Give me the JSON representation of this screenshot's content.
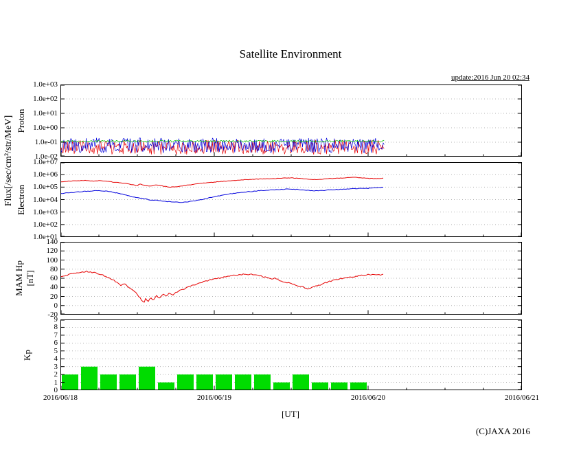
{
  "title": "Satellite Environment",
  "update_text": "update:2016 Jun 20 02:34",
  "shared_ylabel": "Flux[/sec/cm²/str/MeV]",
  "footer": {
    "xlabel": "[UT]",
    "copyright": "(C)JAXA 2016"
  },
  "x_axis": {
    "range_hours": [
      0,
      72
    ],
    "data_end_hour": 50.57,
    "ticks": [
      {
        "label": "2016/06/18",
        "hour": 0
      },
      {
        "label": "2016/06/19",
        "hour": 24
      },
      {
        "label": "2016/06/20",
        "hour": 48
      },
      {
        "label": "2016/06/21",
        "hour": 72
      }
    ]
  },
  "chart_data": [
    {
      "type": "line",
      "name": "proton-flux",
      "ylabel": "Proton",
      "yscale": "log",
      "ylim": [
        0.01,
        1000
      ],
      "grid": true,
      "yticks": [
        {
          "label": "1.0e+03",
          "value": 1000
        },
        {
          "label": "1.0e+02",
          "value": 100
        },
        {
          "label": "1.0e+01",
          "value": 10
        },
        {
          "label": "1.0e+00",
          "value": 1
        },
        {
          "label": "1.0e-01",
          "value": 0.1
        },
        {
          "label": "1.0e-02",
          "value": 0.01
        }
      ],
      "series": [
        {
          "name": "proton-red",
          "color": "#e60000",
          "style": "noise",
          "log_center": -1.35,
          "log_jitter": 0.5,
          "seed": 303
        },
        {
          "name": "proton-blue",
          "color": "#0000dd",
          "style": "noise",
          "log_center": -1.22,
          "log_jitter": 0.52,
          "seed": 202
        },
        {
          "name": "proton-green",
          "color": "#00c000",
          "style": "noise",
          "log_center": -0.93,
          "log_jitter": 0.07,
          "seed": 101
        }
      ]
    },
    {
      "type": "line",
      "name": "electron-flux",
      "ylabel": "Electron",
      "yscale": "log",
      "ylim": [
        10,
        10000000
      ],
      "grid": true,
      "yticks": [
        {
          "label": "1.0e+07",
          "value": 10000000
        },
        {
          "label": "1.0e+06",
          "value": 1000000
        },
        {
          "label": "1.0e+05",
          "value": 100000
        },
        {
          "label": "1.0e+04",
          "value": 10000
        },
        {
          "label": "1.0e+03",
          "value": 1000
        },
        {
          "label": "1.0e+02",
          "value": 100
        },
        {
          "label": "1.0e+01",
          "value": 10
        }
      ],
      "series": [
        {
          "name": "electron-blue",
          "color": "#0000dd",
          "style": "line",
          "log_jitter": 0.025,
          "seed": 8,
          "points": [
            [
              0,
              30000
            ],
            [
              2,
              38000
            ],
            [
              4,
              46000
            ],
            [
              6,
              52000
            ],
            [
              7,
              48000
            ],
            [
              8,
              40000
            ],
            [
              9,
              32000
            ],
            [
              10,
              24000
            ],
            [
              11,
              18000
            ],
            [
              12,
              14000
            ],
            [
              13,
              11500
            ],
            [
              14,
              9500
            ],
            [
              15,
              8500
            ],
            [
              16,
              7500
            ],
            [
              17,
              6800
            ],
            [
              18,
              6200
            ],
            [
              19,
              6000
            ],
            [
              20,
              6800
            ],
            [
              21,
              8000
            ],
            [
              22,
              10000
            ],
            [
              23,
              13000
            ],
            [
              24,
              17000
            ],
            [
              25,
              21000
            ],
            [
              26,
              26000
            ],
            [
              28,
              36000
            ],
            [
              30,
              46000
            ],
            [
              32,
              56000
            ],
            [
              34,
              64000
            ],
            [
              35,
              68000
            ],
            [
              36,
              70000
            ],
            [
              37,
              65000
            ],
            [
              38,
              58000
            ],
            [
              39,
              52000
            ],
            [
              40,
              50000
            ],
            [
              41,
              54000
            ],
            [
              42,
              60000
            ],
            [
              44,
              68000
            ],
            [
              46,
              75000
            ],
            [
              48,
              80000
            ],
            [
              49,
              86000
            ],
            [
              50,
              92000
            ],
            [
              50.6,
              100000
            ]
          ]
        },
        {
          "name": "electron-red",
          "color": "#e60000",
          "style": "line",
          "log_jitter": 0.02,
          "seed": 7,
          "points": [
            [
              0,
              260000
            ],
            [
              2,
              320000
            ],
            [
              4,
              340000
            ],
            [
              5,
              300000
            ],
            [
              6,
              330000
            ],
            [
              8,
              260000
            ],
            [
              10,
              200000
            ],
            [
              11,
              160000
            ],
            [
              12,
              130000
            ],
            [
              12.5,
              180000
            ],
            [
              13,
              140000
            ],
            [
              14,
              120000
            ],
            [
              15,
              150000
            ],
            [
              16,
              120000
            ],
            [
              17,
              100000
            ],
            [
              18,
              105000
            ],
            [
              19,
              125000
            ],
            [
              20,
              150000
            ],
            [
              21,
              170000
            ],
            [
              22,
              200000
            ],
            [
              24,
              250000
            ],
            [
              26,
              310000
            ],
            [
              28,
              370000
            ],
            [
              30,
              420000
            ],
            [
              32,
              460000
            ],
            [
              34,
              500000
            ],
            [
              35,
              530000
            ],
            [
              36,
              550000
            ],
            [
              37,
              510000
            ],
            [
              38,
              460000
            ],
            [
              39,
              410000
            ],
            [
              40,
              390000
            ],
            [
              41,
              430000
            ],
            [
              42,
              480000
            ],
            [
              44,
              540000
            ],
            [
              45,
              580000
            ],
            [
              46,
              600000
            ],
            [
              47,
              550000
            ],
            [
              48,
              500000
            ],
            [
              49,
              480000
            ],
            [
              50,
              500000
            ],
            [
              50.6,
              520000
            ]
          ]
        }
      ]
    },
    {
      "type": "line",
      "name": "mam-hp",
      "ylabel": "MAM Hp",
      "ylabel2": "[nT]",
      "yscale": "linear",
      "ylim": [
        -20,
        140
      ],
      "grid": true,
      "yticks": [
        {
          "label": "140",
          "value": 140
        },
        {
          "label": "120",
          "value": 120
        },
        {
          "label": "100",
          "value": 100
        },
        {
          "label": "80",
          "value": 80
        },
        {
          "label": "60",
          "value": 60
        },
        {
          "label": "40",
          "value": 40
        },
        {
          "label": "20",
          "value": 20
        },
        {
          "label": "0",
          "value": 0
        },
        {
          "label": "-20",
          "value": -20
        }
      ],
      "series": [
        {
          "name": "hp-red",
          "color": "#e60000",
          "style": "line",
          "jitter": 1.3,
          "seed": 9,
          "points": [
            [
              0,
              64
            ],
            [
              1,
              67
            ],
            [
              2,
              70
            ],
            [
              3,
              73
            ],
            [
              4,
              75
            ],
            [
              5,
              73
            ],
            [
              6,
              70
            ],
            [
              7,
              65
            ],
            [
              8,
              58
            ],
            [
              9,
              50
            ],
            [
              9.5,
              44
            ],
            [
              10,
              48
            ],
            [
              10.5,
              41
            ],
            [
              11,
              37
            ],
            [
              11.5,
              31
            ],
            [
              12,
              25
            ],
            [
              12.5,
              15
            ],
            [
              13,
              6
            ],
            [
              13.3,
              16
            ],
            [
              13.7,
              9
            ],
            [
              14,
              18
            ],
            [
              14.5,
              12
            ],
            [
              15,
              21
            ],
            [
              15.5,
              16
            ],
            [
              16,
              25
            ],
            [
              16.5,
              20
            ],
            [
              17,
              27
            ],
            [
              17.5,
              23
            ],
            [
              18,
              29
            ],
            [
              19,
              35
            ],
            [
              20,
              41
            ],
            [
              21,
              46
            ],
            [
              22,
              51
            ],
            [
              23,
              55
            ],
            [
              24,
              58
            ],
            [
              25,
              61
            ],
            [
              26,
              64
            ],
            [
              27,
              66
            ],
            [
              28,
              68
            ],
            [
              29,
              69
            ],
            [
              30,
              68
            ],
            [
              31,
              66
            ],
            [
              32,
              62
            ],
            [
              33,
              58
            ],
            [
              33.5,
              61
            ],
            [
              34,
              56
            ],
            [
              35,
              52
            ],
            [
              36,
              48
            ],
            [
              37,
              44
            ],
            [
              38,
              40
            ],
            [
              38.5,
              36
            ],
            [
              39,
              38
            ],
            [
              40,
              43
            ],
            [
              41,
              48
            ],
            [
              42,
              53
            ],
            [
              43,
              57
            ],
            [
              44,
              60
            ],
            [
              45,
              62
            ],
            [
              46,
              64
            ],
            [
              47,
              66
            ],
            [
              48,
              68
            ],
            [
              49,
              69
            ],
            [
              50,
              67
            ],
            [
              50.6,
              69
            ]
          ]
        }
      ]
    },
    {
      "type": "bar",
      "name": "kp-index",
      "ylabel": "Kp",
      "yscale": "linear",
      "ylim": [
        0,
        9
      ],
      "grid": true,
      "bar_width_hours": 3,
      "yticks": [
        {
          "label": "9",
          "value": 9
        },
        {
          "label": "8",
          "value": 8
        },
        {
          "label": "7",
          "value": 7
        },
        {
          "label": "6",
          "value": 6
        },
        {
          "label": "5",
          "value": 5
        },
        {
          "label": "4",
          "value": 4
        },
        {
          "label": "3",
          "value": 3
        },
        {
          "label": "2",
          "value": 2
        },
        {
          "label": "1",
          "value": 1
        },
        {
          "label": "0",
          "value": 0
        }
      ],
      "series": [
        {
          "name": "kp-bars",
          "color": "#00dc00",
          "style": "bars",
          "values": [
            2,
            3,
            2,
            2,
            3,
            1,
            2,
            2,
            2,
            2,
            2,
            1,
            2,
            1,
            1,
            1
          ]
        }
      ]
    }
  ]
}
